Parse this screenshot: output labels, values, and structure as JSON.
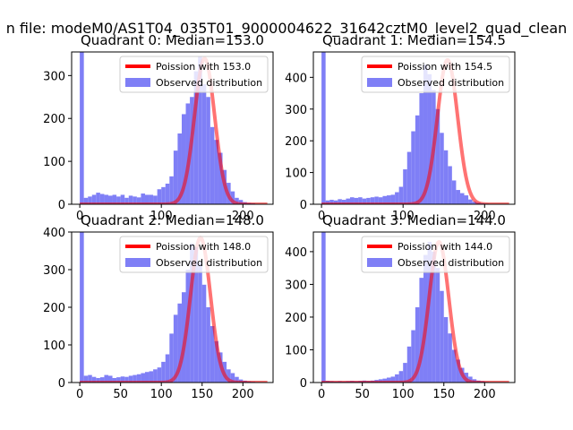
{
  "figure_title": "n file: modeM0/AS1T04_035T01_9000004622_31642cztM0_level2_quad_clean",
  "colors": {
    "histogram": "#7f7ff6",
    "poisson": "#ff0000",
    "axes": "#000000",
    "background": "#ffffff"
  },
  "chart_data": [
    {
      "type": "bar",
      "title": "Quadrant 0: Median=153.0",
      "median": 153.0,
      "xlim": [
        -10,
        237
      ],
      "ylim": [
        0,
        355
      ],
      "xticks": [
        0,
        100,
        200
      ],
      "yticks": [
        0,
        100,
        200,
        300
      ],
      "bin_start": 0,
      "bin_width": 5,
      "counts": [
        355,
        15,
        18,
        22,
        27,
        24,
        22,
        20,
        22,
        18,
        22,
        15,
        20,
        18,
        16,
        25,
        22,
        22,
        20,
        35,
        40,
        48,
        65,
        125,
        165,
        210,
        235,
        250,
        310,
        345,
        280,
        250,
        180,
        150,
        120,
        80,
        50,
        30,
        15,
        10,
        5,
        3,
        2,
        1
      ],
      "series": [
        {
          "name": "Observed distribution",
          "kind": "hist"
        },
        {
          "name": "Poission with 153.0",
          "kind": "poisson",
          "lambda": 153.0,
          "peak": 340
        }
      ],
      "legend_position": "top-right"
    },
    {
      "type": "bar",
      "title": "Quadrant 1: Median=154.5",
      "median": 154.5,
      "xlim": [
        -10,
        237
      ],
      "ylim": [
        0,
        480
      ],
      "xticks": [
        0,
        100,
        200
      ],
      "yticks": [
        0,
        100,
        200,
        300,
        400
      ],
      "bin_start": 0,
      "bin_width": 5,
      "counts": [
        480,
        12,
        14,
        12,
        16,
        14,
        18,
        22,
        20,
        22,
        18,
        20,
        22,
        24,
        22,
        26,
        28,
        30,
        38,
        55,
        110,
        165,
        230,
        280,
        350,
        440,
        410,
        360,
        300,
        225,
        170,
        120,
        75,
        45,
        35,
        28,
        15,
        8,
        5,
        3,
        2
      ],
      "series": [
        {
          "name": "Observed distribution",
          "kind": "hist"
        },
        {
          "name": "Poission with 154.5",
          "kind": "poisson",
          "lambda": 154.5,
          "peak": 455
        }
      ],
      "legend_position": "top-right"
    },
    {
      "type": "bar",
      "title": "Quadrant 2: Median=148.0",
      "median": 148.0,
      "xlim": [
        -10,
        237
      ],
      "ylim": [
        0,
        400
      ],
      "xticks": [
        0,
        50,
        100,
        150,
        200
      ],
      "yticks": [
        0,
        100,
        200,
        300,
        400
      ],
      "bin_start": 0,
      "bin_width": 5,
      "counts": [
        400,
        18,
        20,
        15,
        12,
        14,
        20,
        18,
        12,
        14,
        16,
        15,
        18,
        20,
        22,
        25,
        28,
        30,
        35,
        40,
        55,
        75,
        130,
        180,
        210,
        240,
        300,
        370,
        360,
        320,
        260,
        200,
        150,
        110,
        80,
        55,
        35,
        25,
        15,
        8,
        5,
        3,
        2,
        1
      ],
      "series": [
        {
          "name": "Observed distribution",
          "kind": "hist"
        },
        {
          "name": "Poission with 148.0",
          "kind": "poisson",
          "lambda": 148.0,
          "peak": 385
        }
      ],
      "legend_position": "top-right"
    },
    {
      "type": "bar",
      "title": "Quadrant 3: Median=144.0",
      "median": 144.0,
      "xlim": [
        -10,
        237
      ],
      "ylim": [
        0,
        460
      ],
      "xticks": [
        0,
        50,
        100,
        150,
        200
      ],
      "yticks": [
        0,
        100,
        200,
        300,
        400
      ],
      "bin_start": 0,
      "bin_width": 5,
      "counts": [
        460,
        5,
        4,
        3,
        4,
        3,
        4,
        5,
        4,
        5,
        6,
        5,
        6,
        8,
        10,
        12,
        15,
        18,
        25,
        35,
        60,
        110,
        160,
        230,
        320,
        390,
        430,
        400,
        350,
        280,
        200,
        150,
        100,
        70,
        45,
        30,
        18,
        10,
        6,
        4,
        2,
        1
      ],
      "series": [
        {
          "name": "Observed distribution",
          "kind": "hist"
        },
        {
          "name": "Poission with 144.0",
          "kind": "poisson",
          "lambda": 144.0,
          "peak": 430
        }
      ],
      "legend_position": "top-right"
    }
  ]
}
